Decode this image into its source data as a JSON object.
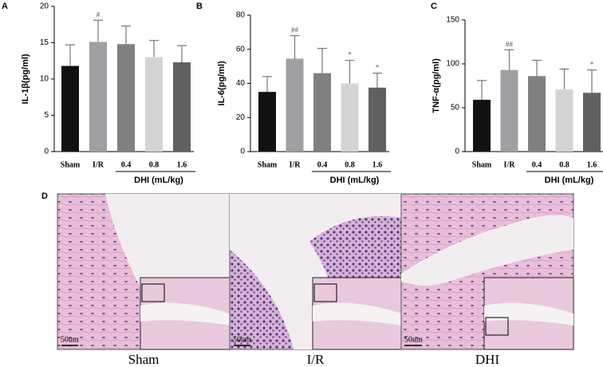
{
  "chart_data": [
    {
      "type": "bar",
      "panel": "A",
      "y_label": "IL-1β(pg/ml)",
      "categories": [
        "Sham",
        "I/R",
        "0.4",
        "0.8",
        "1.6"
      ],
      "group_label": "DHI (mL/kg)",
      "values": [
        11.8,
        15.1,
        14.8,
        13.0,
        12.3
      ],
      "errors": [
        2.9,
        3.0,
        2.5,
        2.3,
        2.3
      ],
      "annotations": [
        null,
        "#",
        null,
        null,
        null
      ],
      "colors": [
        "#111111",
        "#a0a0a4",
        "#808080",
        "#d4d4d4",
        "#606060"
      ],
      "ylim": [
        0,
        20
      ],
      "yticks": [
        0,
        5,
        10,
        15,
        20
      ]
    },
    {
      "type": "bar",
      "panel": "B",
      "y_label": "IL-6(pg/ml)",
      "categories": [
        "Sham",
        "I/R",
        "0.4",
        "0.8",
        "1.6"
      ],
      "group_label": "DHI (mL/kg)",
      "values": [
        35,
        54.5,
        46,
        40,
        37.5
      ],
      "errors": [
        9,
        13.5,
        14.5,
        13.5,
        8.5
      ],
      "annotations": [
        null,
        "##",
        null,
        "*",
        "*"
      ],
      "colors": [
        "#111111",
        "#a0a0a4",
        "#808080",
        "#d4d4d4",
        "#606060"
      ],
      "ylim": [
        0,
        80
      ],
      "yticks": [
        0,
        20,
        40,
        60,
        80
      ]
    },
    {
      "type": "bar",
      "panel": "C",
      "y_label": "TNF-α(pg/ml)",
      "categories": [
        "Sham",
        "I/R",
        "0.4",
        "0.8",
        "1.6"
      ],
      "group_label": "DHI (mL/kg)",
      "values": [
        59,
        93,
        86,
        71,
        67
      ],
      "errors": [
        22,
        23,
        18,
        23,
        26
      ],
      "annotations": [
        null,
        "##",
        null,
        null,
        "*"
      ],
      "colors": [
        "#111111",
        "#a0a0a4",
        "#808080",
        "#d4d4d4",
        "#606060"
      ],
      "ylim": [
        0,
        150
      ],
      "yticks": [
        0,
        50,
        100,
        150
      ]
    }
  ],
  "histology": {
    "panel": "D",
    "images": [
      {
        "caption": "Sham",
        "scale": "50um"
      },
      {
        "caption": "I/R",
        "scale": "50um"
      },
      {
        "caption": "DHI",
        "scale": "50um"
      }
    ]
  }
}
